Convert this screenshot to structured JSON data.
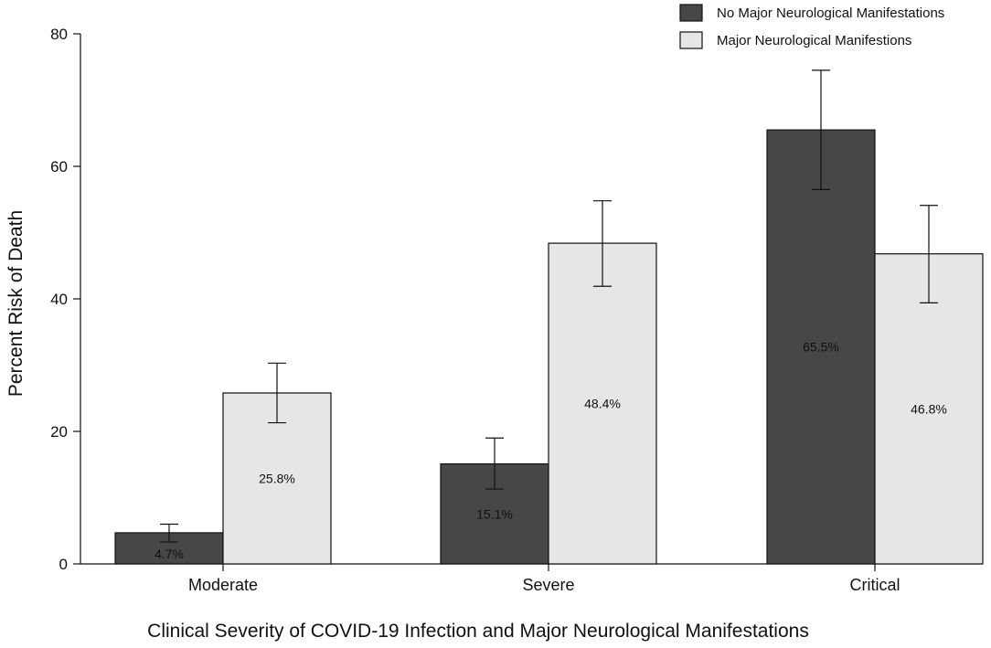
{
  "chart_data": {
    "type": "bar",
    "title": "",
    "xlabel": "Clinical Severity of COVID-19 Infection and Major Neurological Manifestations",
    "ylabel": "Percent Risk of Death",
    "ylim": [
      0,
      80
    ],
    "yticks": [
      0,
      20,
      40,
      60,
      80
    ],
    "categories": [
      "Moderate",
      "Severe",
      "Critical"
    ],
    "legend_position": "top-right",
    "series": [
      {
        "name": "No Major Neurological Manifestations",
        "color": "#474747",
        "values": [
          4.7,
          15.1,
          65.5
        ],
        "labels": [
          "4.7%",
          "15.1%",
          "65.5%"
        ],
        "error_low": [
          3.3,
          11.3,
          56.5
        ],
        "error_high": [
          6.0,
          19.0,
          74.5
        ]
      },
      {
        "name": "Major Neurological Manifestions",
        "color": "#e6e6e6",
        "values": [
          25.8,
          48.4,
          46.8
        ],
        "labels": [
          "25.8%",
          "48.4%",
          "46.8%"
        ],
        "error_low": [
          21.3,
          41.9,
          39.4
        ],
        "error_high": [
          30.3,
          54.8,
          54.1
        ]
      }
    ]
  }
}
